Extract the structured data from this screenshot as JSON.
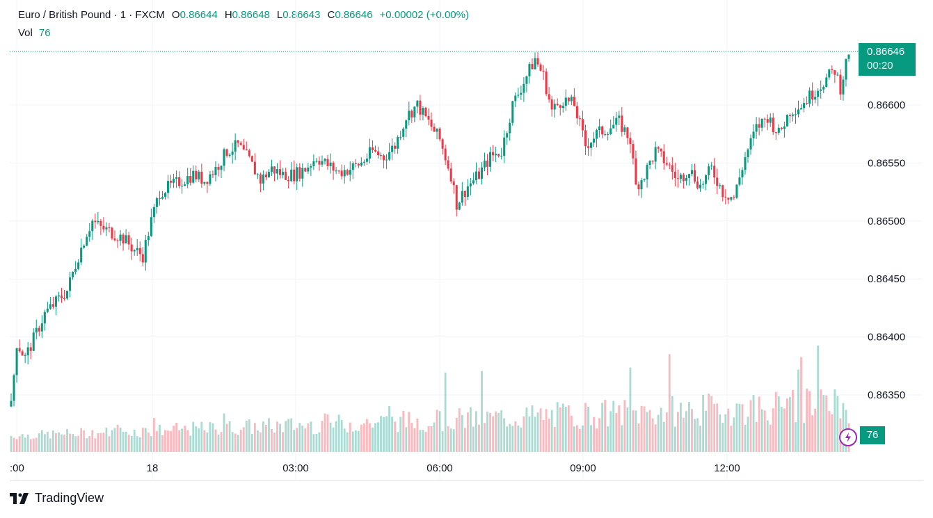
{
  "legend": {
    "symbol": "Euro / British Pound · 1 · FXCM",
    "o_label": "O",
    "o_value": "0.86644",
    "h_label": "H",
    "h_value": "0.86648",
    "l_label": "L",
    "l_value": "0.86643",
    "c_label": "C",
    "c_value": "0.86646",
    "change": "+0.00002 (+0.00%)",
    "vol_label": "Vol",
    "vol_value": "76"
  },
  "price_tag": {
    "price": "0.86646",
    "countdown": "00:20"
  },
  "volume_tag": "76",
  "brand": "TradingView",
  "colors": {
    "up": "#089981",
    "down": "#f23645",
    "text": "#131722",
    "grid": "#f0f3fa"
  },
  "chart_data": {
    "type": "candlestick",
    "interval": "1 minute",
    "y_ticks": [
      "0.86350",
      "0.86400",
      "0.86450",
      "0.86500",
      "0.86550",
      "0.86600"
    ],
    "x_ticks": [
      ":00",
      "18",
      "03:00",
      "06:00",
      "09:00",
      "12:00"
    ],
    "ylim": [
      0.8633,
      0.8666
    ],
    "last_price": 0.86646,
    "price_path": [
      [
        0,
        0.8634
      ],
      [
        2,
        0.86395
      ],
      [
        5,
        0.86382
      ],
      [
        8,
        0.86398
      ],
      [
        12,
        0.8642
      ],
      [
        16,
        0.8643
      ],
      [
        20,
        0.8644
      ],
      [
        24,
        0.8647
      ],
      [
        27,
        0.8649
      ],
      [
        29,
        0.865
      ],
      [
        32,
        0.86494
      ],
      [
        36,
        0.8649
      ],
      [
        40,
        0.86485
      ],
      [
        44,
        0.86475
      ],
      [
        47,
        0.8647
      ],
      [
        50,
        0.865
      ],
      [
        53,
        0.86525
      ],
      [
        57,
        0.8653
      ],
      [
        61,
        0.86535
      ],
      [
        65,
        0.8654
      ],
      [
        69,
        0.86535
      ],
      [
        73,
        0.86545
      ],
      [
        77,
        0.8656
      ],
      [
        81,
        0.86565
      ],
      [
        85,
        0.86552
      ],
      [
        89,
        0.86535
      ],
      [
        93,
        0.86545
      ],
      [
        97,
        0.8654
      ],
      [
        101,
        0.8654
      ],
      [
        105,
        0.86545
      ],
      [
        109,
        0.86555
      ],
      [
        113,
        0.86548
      ],
      [
        117,
        0.86542
      ],
      [
        121,
        0.86545
      ],
      [
        125,
        0.8655
      ],
      [
        129,
        0.8656
      ],
      [
        133,
        0.86555
      ],
      [
        137,
        0.86565
      ],
      [
        141,
        0.8659
      ],
      [
        145,
        0.866
      ],
      [
        149,
        0.86585
      ],
      [
        153,
        0.8657
      ],
      [
        157,
        0.8654
      ],
      [
        159,
        0.86515
      ],
      [
        163,
        0.8653
      ],
      [
        167,
        0.8654
      ],
      [
        171,
        0.86555
      ],
      [
        175,
        0.8656
      ],
      [
        179,
        0.866
      ],
      [
        183,
        0.8662
      ],
      [
        187,
        0.8664
      ],
      [
        190,
        0.86625
      ],
      [
        193,
        0.86595
      ],
      [
        197,
        0.86605
      ],
      [
        201,
        0.866
      ],
      [
        205,
        0.86565
      ],
      [
        209,
        0.86575
      ],
      [
        213,
        0.8658
      ],
      [
        217,
        0.86585
      ],
      [
        221,
        0.8657
      ],
      [
        223,
        0.8653
      ],
      [
        226,
        0.8654
      ],
      [
        230,
        0.8656
      ],
      [
        234,
        0.8655
      ],
      [
        238,
        0.86535
      ],
      [
        242,
        0.86545
      ],
      [
        246,
        0.8653
      ],
      [
        250,
        0.86545
      ],
      [
        254,
        0.86525
      ],
      [
        258,
        0.8652
      ],
      [
        262,
        0.86555
      ],
      [
        266,
        0.8658
      ],
      [
        270,
        0.8659
      ],
      [
        274,
        0.86575
      ],
      [
        278,
        0.86595
      ],
      [
        282,
        0.866
      ],
      [
        286,
        0.8661
      ],
      [
        290,
        0.8662
      ],
      [
        294,
        0.8663
      ],
      [
        296,
        0.86615
      ],
      [
        299,
        0.86646
      ]
    ],
    "volume_range": [
      5,
      60
    ]
  }
}
